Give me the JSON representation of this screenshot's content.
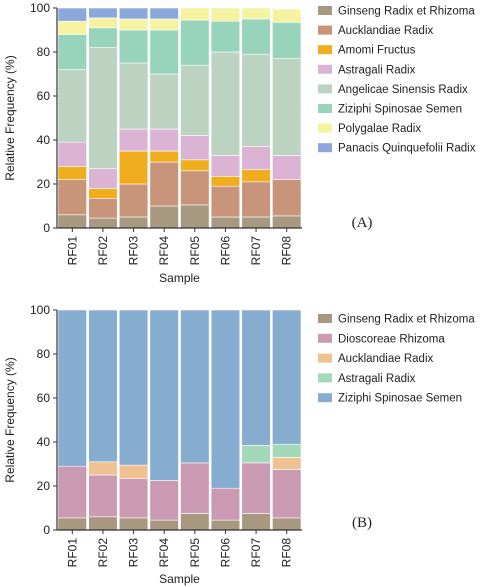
{
  "chart_data": [
    {
      "type": "bar",
      "stacked": true,
      "panel_label": "(A)",
      "xlabel": "Sample",
      "ylabel": "Relative Frequency (%)",
      "ylim": [
        0,
        100
      ],
      "yticks": [
        0,
        20,
        40,
        60,
        80,
        100
      ],
      "categories": [
        "RF01",
        "RF02",
        "RF03",
        "RF04",
        "RF05",
        "RF06",
        "RF07",
        "RF08"
      ],
      "legend_position": "right",
      "series": [
        {
          "name": "Ginseng Radix et Rhizoma",
          "color": "#a89880",
          "values": [
            6,
            4.5,
            5,
            10,
            10.5,
            5,
            5,
            5.5
          ]
        },
        {
          "name": "Aucklandiae Radix",
          "color": "#c9957a",
          "values": [
            16,
            9,
            15,
            20,
            15.5,
            14,
            16,
            16.5
          ]
        },
        {
          "name": "Amomi Fructus",
          "color": "#f0ae1e",
          "values": [
            6,
            4.5,
            15,
            5,
            5,
            4.5,
            5.5,
            0
          ]
        },
        {
          "name": "Astragali Radix",
          "color": "#dbb3d4",
          "values": [
            11,
            9,
            10,
            10,
            11,
            9.5,
            10.5,
            11
          ]
        },
        {
          "name": "Angelicae Sinensis Radix",
          "color": "#bcd3c1",
          "values": [
            33,
            55,
            30,
            25,
            32,
            47,
            42,
            44
          ]
        },
        {
          "name": "Ziziphi Spinosae Semen",
          "color": "#98d4bb",
          "values": [
            16,
            9,
            15,
            20,
            20.5,
            14,
            16,
            16.5
          ]
        },
        {
          "name": "Polygalae Radix",
          "color": "#f6f3a0",
          "values": [
            6,
            4.5,
            5,
            5,
            5.5,
            6,
            5,
            6
          ]
        },
        {
          "name": "Panacis Quinquefolii Radix",
          "color": "#8ba8dc",
          "values": [
            6,
            4.5,
            5,
            5,
            0,
            0,
            0,
            0
          ]
        }
      ]
    },
    {
      "type": "bar",
      "stacked": true,
      "panel_label": "(B)",
      "xlabel": "Sample",
      "ylabel": "Relative Frequency (%)",
      "ylim": [
        0,
        100
      ],
      "yticks": [
        0,
        20,
        40,
        60,
        80,
        100
      ],
      "categories": [
        "RF01",
        "RF02",
        "RF03",
        "RF04",
        "RF05",
        "RF06",
        "RF07",
        "RF08"
      ],
      "legend_position": "right",
      "series": [
        {
          "name": "Ginseng Radix et Rhizoma",
          "color": "#a89880",
          "values": [
            5.5,
            6,
            5.5,
            4.5,
            7.5,
            4.5,
            7.5,
            5.5
          ]
        },
        {
          "name": "Dioscoreae Rhizoma",
          "color": "#c99ab2",
          "values": [
            23.5,
            19,
            18,
            18,
            23,
            14.5,
            23,
            22
          ]
        },
        {
          "name": "Aucklandiae Radix",
          "color": "#f0c291",
          "values": [
            0,
            6,
            6,
            0,
            0,
            0,
            0,
            5.5
          ]
        },
        {
          "name": "Astragali Radix",
          "color": "#a3d9b8",
          "values": [
            0,
            0,
            0,
            0,
            0,
            0,
            8,
            6
          ]
        },
        {
          "name": "Ziziphi Spinosae Semen",
          "color": "#86acd0",
          "values": [
            71,
            69,
            70.5,
            77.5,
            69.5,
            81,
            61.5,
            61
          ]
        }
      ]
    }
  ]
}
